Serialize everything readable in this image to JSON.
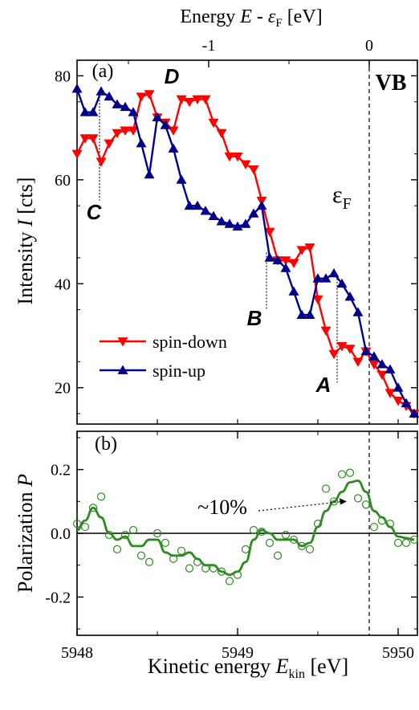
{
  "chart_data": [
    {
      "panel": "(a)",
      "type": "line",
      "top_axis": {
        "label_parts": [
          "Energy ",
          "E",
          " - ",
          "ε",
          "F",
          " [eV]"
        ],
        "ticks": [
          -1,
          0
        ],
        "tick_labels": [
          "-1",
          "0"
        ],
        "offset_ev": 5949.82
      },
      "xlabel_parts": [
        "Kinetic energy ",
        "E",
        "kin",
        " [eV]"
      ],
      "ylabel_parts": [
        "Intensity ",
        "I",
        " [cts]"
      ],
      "xlim": [
        5948,
        5950.12
      ],
      "ylim": [
        13,
        83
      ],
      "yticks": [
        20,
        40,
        60,
        80
      ],
      "ytick_labels": [
        "20",
        "40",
        "60",
        "80"
      ],
      "grid": false,
      "legend_position": "lower-left",
      "series": [
        {
          "name": "spin-down",
          "color": "#ff0000",
          "marker": "triangle-down",
          "x": [
            5948.0,
            5948.05,
            5948.1,
            5948.15,
            5948.2,
            5948.25,
            5948.3,
            5948.35,
            5948.4,
            5948.45,
            5948.5,
            5948.55,
            5948.6,
            5948.65,
            5948.7,
            5948.75,
            5948.8,
            5948.85,
            5948.9,
            5948.95,
            5949.0,
            5949.05,
            5949.1,
            5949.15,
            5949.2,
            5949.25,
            5949.3,
            5949.35,
            5949.4,
            5949.45,
            5949.5,
            5949.55,
            5949.6,
            5949.65,
            5949.7,
            5949.75,
            5949.8,
            5949.85,
            5949.9,
            5949.95,
            5950.0,
            5950.05,
            5950.1
          ],
          "y": [
            65,
            68,
            68,
            63.5,
            67,
            69,
            69.5,
            69.5,
            76,
            76.5,
            72,
            71,
            69.5,
            75.5,
            75,
            75.5,
            75.5,
            71,
            69,
            64.5,
            64.5,
            63,
            62,
            56,
            50,
            44.5,
            44.5,
            44,
            46.5,
            47,
            37,
            31,
            26.5,
            28,
            27.5,
            25,
            27,
            24.5,
            22.5,
            19,
            17.5,
            16.5,
            15
          ]
        },
        {
          "name": "spin-up",
          "color": "#00008b",
          "marker": "triangle-up",
          "x": [
            5948.0,
            5948.05,
            5948.1,
            5948.15,
            5948.2,
            5948.25,
            5948.3,
            5948.35,
            5948.4,
            5948.45,
            5948.5,
            5948.55,
            5948.6,
            5948.65,
            5948.7,
            5948.75,
            5948.8,
            5948.85,
            5948.9,
            5948.95,
            5949.0,
            5949.05,
            5949.1,
            5949.15,
            5949.2,
            5949.25,
            5949.3,
            5949.35,
            5949.4,
            5949.45,
            5949.5,
            5949.55,
            5949.6,
            5949.65,
            5949.7,
            5949.75,
            5949.8,
            5949.85,
            5949.9,
            5949.95,
            5950.0,
            5950.05,
            5950.1
          ],
          "y": [
            77.5,
            73,
            73,
            77,
            76,
            74.5,
            74,
            73,
            67,
            61,
            72,
            70.5,
            66,
            60,
            55,
            55,
            54,
            53,
            52,
            51.5,
            51,
            51.5,
            53.5,
            55,
            45,
            44.5,
            43,
            38.5,
            34,
            34,
            41,
            41,
            42,
            40,
            37.5,
            34.5,
            27,
            26,
            24.5,
            23.5,
            20,
            17,
            15
          ]
        }
      ],
      "annotations": [
        {
          "text": "(a)",
          "kind": "panel-label"
        },
        {
          "text": "D",
          "kind": "peak-label"
        },
        {
          "text": "C",
          "kind": "peak-label",
          "mark_x": 5948.14
        },
        {
          "text": "B",
          "kind": "peak-label",
          "mark_x": 5949.18
        },
        {
          "text": "A",
          "kind": "peak-label",
          "mark_x": 5949.62
        },
        {
          "text": "VB",
          "kind": "label"
        },
        {
          "text_parts": [
            "ε",
            "F"
          ],
          "kind": "label"
        }
      ],
      "fermi_level_x": 5949.82
    },
    {
      "panel": "(b)",
      "type": "scatter",
      "xlabel_parts": [
        "Kinetic energy ",
        "E",
        "kin",
        " [eV]"
      ],
      "ylabel_parts": [
        "Polarization ",
        "P"
      ],
      "xlim": [
        5948,
        5950.12
      ],
      "ylim": [
        -0.32,
        0.32
      ],
      "yticks": [
        -0.2,
        0.0,
        0.2
      ],
      "ytick_labels": [
        "-0.2",
        "0.0",
        "0.2"
      ],
      "xticks": [
        5948,
        5949,
        5950
      ],
      "xtick_labels": [
        "5948",
        "5949",
        "5950"
      ],
      "grid": false,
      "series": [
        {
          "name": "",
          "kind": "points",
          "color": "#2e8b22",
          "marker": "open-circle",
          "x": [
            5948.0,
            5948.05,
            5948.1,
            5948.15,
            5948.2,
            5948.25,
            5948.3,
            5948.35,
            5948.4,
            5948.45,
            5948.5,
            5948.55,
            5948.6,
            5948.65,
            5948.7,
            5948.75,
            5948.8,
            5948.85,
            5948.9,
            5948.95,
            5949.0,
            5949.05,
            5949.1,
            5949.15,
            5949.2,
            5949.25,
            5949.3,
            5949.35,
            5949.4,
            5949.45,
            5949.5,
            5949.55,
            5949.6,
            5949.65,
            5949.7,
            5949.75,
            5949.8,
            5949.85,
            5949.9,
            5949.95,
            5950.0,
            5950.05,
            5950.1
          ],
          "y": [
            0.03,
            0.02,
            0.08,
            0.115,
            -0.005,
            -0.05,
            -0.005,
            0.01,
            -0.07,
            -0.09,
            0.0,
            -0.03,
            -0.08,
            -0.055,
            -0.11,
            -0.09,
            -0.11,
            -0.11,
            -0.12,
            -0.15,
            -0.13,
            -0.05,
            0.01,
            0.005,
            -0.03,
            -0.07,
            -0.005,
            -0.02,
            -0.04,
            -0.05,
            0.03,
            0.14,
            0.1,
            0.185,
            0.19,
            0.11,
            0.09,
            0.02,
            0.04,
            0.03,
            -0.03,
            -0.03,
            -0.02
          ]
        },
        {
          "name": "",
          "kind": "smoothed",
          "color": "#2e8b22",
          "x": [
            5948.0,
            5948.05,
            5948.1,
            5948.15,
            5948.2,
            5948.25,
            5948.3,
            5948.35,
            5948.4,
            5948.45,
            5948.5,
            5948.55,
            5948.6,
            5948.65,
            5948.7,
            5948.75,
            5948.8,
            5948.85,
            5948.9,
            5948.95,
            5949.0,
            5949.05,
            5949.1,
            5949.15,
            5949.2,
            5949.25,
            5949.3,
            5949.35,
            5949.4,
            5949.45,
            5949.5,
            5949.55,
            5949.6,
            5949.65,
            5949.7,
            5949.75,
            5949.8,
            5949.85,
            5949.9,
            5949.95,
            5950.0,
            5950.05,
            5950.1
          ],
          "y": [
            0.01,
            0.04,
            0.08,
            0.05,
            0.0,
            -0.02,
            -0.01,
            -0.04,
            -0.04,
            -0.02,
            -0.02,
            -0.06,
            -0.07,
            -0.07,
            -0.06,
            -0.08,
            -0.1,
            -0.1,
            -0.12,
            -0.13,
            -0.12,
            -0.09,
            -0.02,
            0.01,
            0.0,
            -0.02,
            -0.02,
            -0.02,
            -0.04,
            -0.03,
            0.02,
            0.07,
            0.1,
            0.13,
            0.16,
            0.165,
            0.13,
            0.07,
            0.05,
            0.02,
            -0.01,
            -0.015,
            -0.02
          ]
        }
      ],
      "annotations": [
        {
          "text": "(b)",
          "kind": "panel-label"
        },
        {
          "text": "~10%",
          "kind": "callout",
          "arrow_to_x": 5949.68,
          "arrow_to_y": 0.1
        }
      ],
      "zero_line": true,
      "fermi_level_x": 5949.82
    }
  ]
}
